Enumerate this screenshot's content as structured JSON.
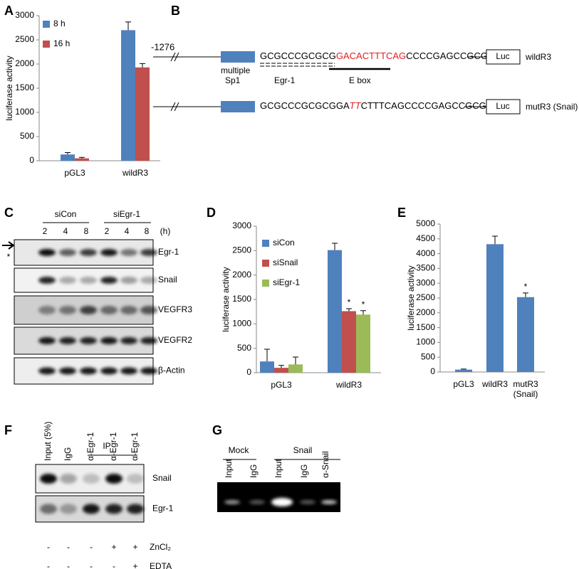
{
  "panel_labels": [
    "A",
    "B",
    "C",
    "D",
    "E",
    "F",
    "G"
  ],
  "chart_data": [
    {
      "type": "bar",
      "y_label": "luciferase activity",
      "categories": [
        "pGL3",
        "wildR3"
      ],
      "series": [
        {
          "name": "8 h",
          "color": "#4f81bd",
          "values": [
            130,
            2700
          ],
          "errors": [
            40,
            170
          ]
        },
        {
          "name": "16 h",
          "color": "#c0504d",
          "values": [
            50,
            1930
          ],
          "errors": [
            20,
            80
          ]
        }
      ],
      "ylim": [
        0,
        3000
      ],
      "yticks": [
        0,
        500,
        1000,
        1500,
        2000,
        2500,
        3000
      ],
      "legend": "upper left"
    },
    {
      "type": "bar",
      "y_label": "luciferase activity",
      "categories": [
        "pGL3",
        "wildR3"
      ],
      "series": [
        {
          "name": "siCon",
          "color": "#4f81bd",
          "values": [
            230,
            2510
          ],
          "errors": [
            250,
            140
          ],
          "labels": [
            null,
            null
          ]
        },
        {
          "name": "siSnail",
          "color": "#c0504d",
          "values": [
            100,
            1260
          ],
          "errors": [
            50,
            50
          ],
          "labels": [
            null,
            "*"
          ]
        },
        {
          "name": "siEgr-1",
          "color": "#9bbb59",
          "values": [
            170,
            1190
          ],
          "errors": [
            150,
            80
          ],
          "labels": [
            null,
            "*"
          ]
        }
      ],
      "ylim": [
        0,
        3000
      ],
      "yticks": [
        0,
        500,
        1000,
        1500,
        2000,
        2500,
        3000
      ],
      "legend": "upper left"
    },
    {
      "type": "bar",
      "y_label": "luciferase activity",
      "categories": [
        "pGL3",
        "wildR3",
        "mutR3 (Snail)"
      ],
      "series": [
        {
          "color": "#4f81bd",
          "values": [
            80,
            4320,
            2530
          ],
          "errors": [
            20,
            270,
            140
          ],
          "labels": [
            null,
            null,
            "*"
          ]
        }
      ],
      "ylim": [
        0,
        5000
      ],
      "yticks": [
        0,
        500,
        1000,
        1500,
        2000,
        2500,
        3000,
        3500,
        4000,
        4500,
        5000
      ]
    }
  ],
  "diagram": {
    "position": "-1276",
    "sp1_label": [
      "multiple",
      "Sp1"
    ],
    "egr1": "Egr-1",
    "ebox": "E box",
    "wild": {
      "seq": [
        "GCGCCCGCGCG",
        "GACACTTTCAG",
        "CCCCGAGCCGCG"
      ],
      "luc": "Luc",
      "name": "wildR3"
    },
    "mut": {
      "seq": [
        "GCGCCCGCGCGGA",
        "TT",
        "CTTTCAGCCCCGAGCCGCG"
      ],
      "luc": "Luc",
      "name": "mutR3 (Snail)"
    }
  },
  "blot_c": {
    "groups": [
      "siCon",
      "siEgr-1"
    ],
    "times": [
      "2",
      "4",
      "8",
      "2",
      "4",
      "8"
    ],
    "unit": "(h)",
    "rows": [
      "Egr-1",
      "Snail",
      "VEGFR3",
      "VEGFR2",
      "β-Actin"
    ],
    "marker": "*"
  },
  "blot_f": {
    "ip": "IP",
    "lanes": [
      "Input (5%)",
      "IgG",
      "α-Egr-1",
      "α-Egr-1",
      "α-Egr-1"
    ],
    "rows": [
      "Snail",
      "Egr-1"
    ],
    "treatments": [
      {
        "name": "ZnCl₂",
        "signs": [
          "-",
          "-",
          "-",
          "+",
          "+"
        ]
      },
      {
        "name": "EDTA",
        "signs": [
          "-",
          "-",
          "-",
          "-",
          "+"
        ]
      }
    ]
  },
  "blot_g": {
    "groups": [
      "Mock",
      "Snail"
    ],
    "lanes": [
      "Input",
      "IgG",
      "Input",
      "IgG",
      "α-Snail"
    ]
  }
}
